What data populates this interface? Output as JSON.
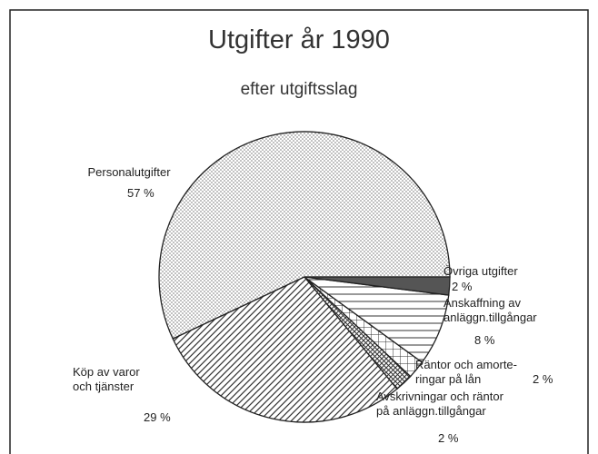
{
  "chart_data": {
    "type": "pie",
    "title": "Utgifter år 1990",
    "subtitle": "efter utgiftsslag",
    "categories": [
      "Personalutgifter",
      "Köp av varor\noch tjänster",
      "Avskrivningar och räntor\npå anläggn.tillgångar",
      "Räntor och amorte-\nringar på lån",
      "Anskaffning av\nanläggn.tillgångar",
      "Övriga utgifter"
    ],
    "values": [
      57,
      29,
      2,
      2,
      8,
      2
    ],
    "value_labels": [
      "57 %",
      "29 %",
      "2 %",
      "2 %",
      "8 %",
      "2 %"
    ],
    "patterns": [
      "dots",
      "diagonal",
      "crosshatch",
      "grid",
      "horizontal",
      "solid"
    ],
    "color": "#555555"
  }
}
